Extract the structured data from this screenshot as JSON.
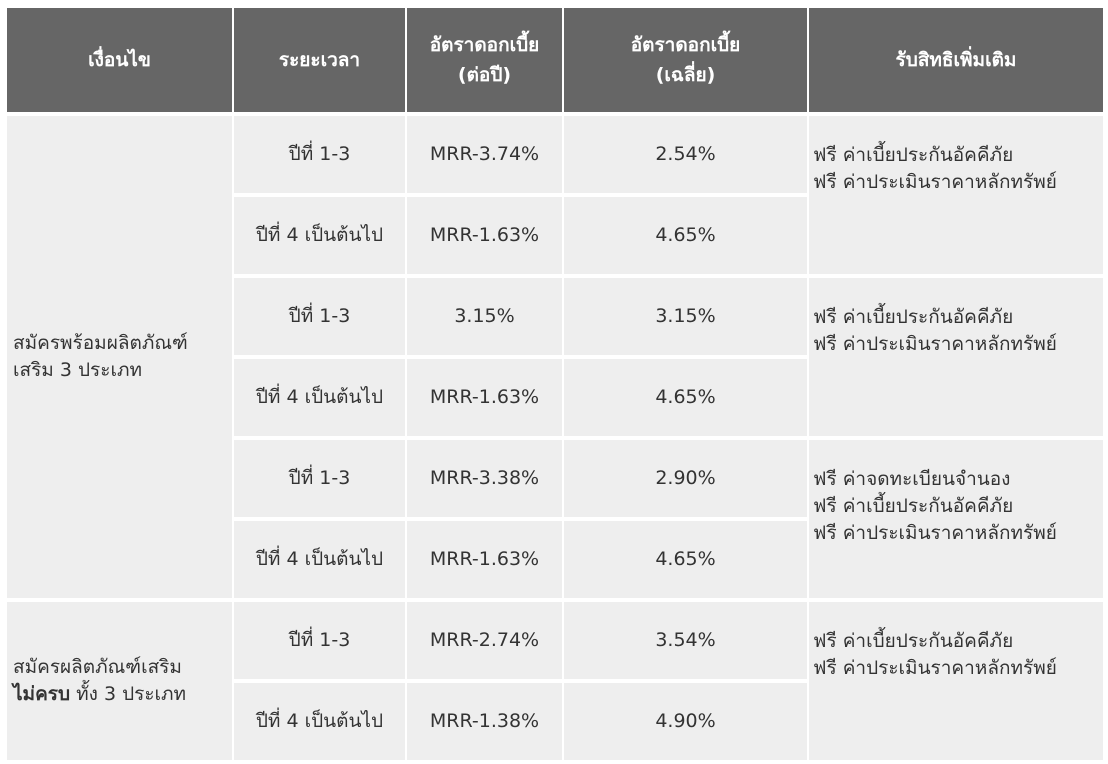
{
  "header": {
    "condition": "เงื่อนไข",
    "period": "ระยะเวลา",
    "rate_annual_line1": "อัตราดอกเบี้ย",
    "rate_annual_line2": "(ต่อปี)",
    "rate_avg_line1": "อัตราดอกเบี้ย",
    "rate_avg_line2": "(เฉลี่ย)",
    "benefits": "รับสิทธิเพิ่มเติม"
  },
  "groups": [
    {
      "condition_line1": "สมัครพร้อมผลิตภัณฑ์",
      "condition_line2": "เสริม 3 ประเภท",
      "blocks": [
        {
          "rows": [
            {
              "period": "ปีที่ 1-3",
              "rate": "MRR-3.74%",
              "avg": "2.54%"
            },
            {
              "period": "ปีที่ 4 เป็นต้นไป",
              "rate": "MRR-1.63%",
              "avg": "4.65%"
            }
          ],
          "benefits": [
            "ฟรี ค่าเบี้ยประกันอัคคีภัย",
            "ฟรี ค่าประเมินราคาหลักทรัพย์"
          ]
        },
        {
          "rows": [
            {
              "period": "ปีที่ 1-3",
              "rate": "3.15%",
              "avg": "3.15%"
            },
            {
              "period": "ปีที่ 4 เป็นต้นไป",
              "rate": "MRR-1.63%",
              "avg": "4.65%"
            }
          ],
          "benefits": [
            "ฟรี ค่าเบี้ยประกันอัคคีภัย",
            "ฟรี ค่าประเมินราคาหลักทรัพย์"
          ]
        },
        {
          "rows": [
            {
              "period": "ปีที่ 1-3",
              "rate": "MRR-3.38%",
              "avg": "2.90%"
            },
            {
              "period": "ปีที่ 4 เป็นต้นไป",
              "rate": "MRR-1.63%",
              "avg": "4.65%"
            }
          ],
          "benefits": [
            "ฟรี ค่าจดทะเบียนจำนอง",
            "ฟรี ค่าเบี้ยประกันอัคคีภัย",
            "ฟรี ค่าประเมินราคาหลักทรัพย์"
          ]
        }
      ]
    },
    {
      "condition_line1": "สมัครผลิตภัณฑ์เสริม",
      "condition_line2_bold": "ไม่ครบ",
      "condition_line2_rest": " ทั้ง 3 ประเภท",
      "blocks": [
        {
          "rows": [
            {
              "period": "ปีที่ 1-3",
              "rate": "MRR-2.74%",
              "avg": "3.54%"
            },
            {
              "period": "ปีที่ 4 เป็นต้นไป",
              "rate": "MRR-1.38%",
              "avg": "4.90%"
            }
          ],
          "benefits": [
            "ฟรี ค่าเบี้ยประกันอัคคีภัย",
            "ฟรี ค่าประเมินราคาหลักทรัพย์"
          ]
        }
      ]
    }
  ]
}
